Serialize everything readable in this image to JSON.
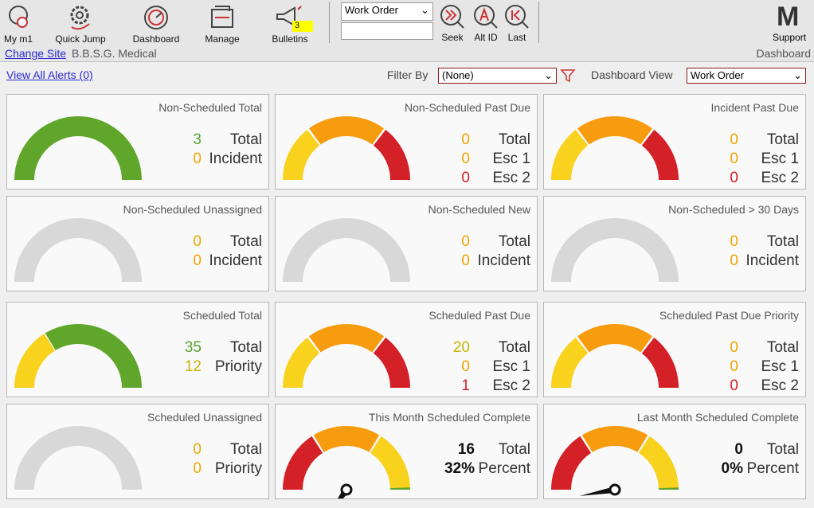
{
  "toolbar": {
    "buttons": [
      "My m1",
      "Quick Jump",
      "Dashboard",
      "Manage",
      "Bulletins"
    ],
    "bulletin_count": "3",
    "search_type": "Work Order",
    "search_buttons": [
      "Seek",
      "Alt ID",
      "Last"
    ],
    "logo": "M",
    "support": "Support"
  },
  "site": {
    "change_site": "Change Site",
    "name": "B.B.S.G. Medical",
    "page": "Dashboard"
  },
  "filters": {
    "alerts": "View All Alerts (0)",
    "filter_label": "Filter By",
    "filter_value": "(None)",
    "view_label": "Dashboard View",
    "view_value": "Work Order"
  },
  "cards": [
    {
      "title": "Non-Scheduled Total",
      "gauge": "green",
      "rows": [
        {
          "value": "3",
          "label": "Total",
          "color": "#5aa02c"
        },
        {
          "value": "0",
          "label": "Incident",
          "color": "#f0a500"
        }
      ]
    },
    {
      "title": "Non-Scheduled Past Due",
      "gauge": "alert",
      "rows": [
        {
          "value": "0",
          "label": "Total",
          "color": "#f0a500"
        },
        {
          "value": "0",
          "label": "Esc 1",
          "color": "#f0a500"
        },
        {
          "value": "0",
          "label": "Esc 2",
          "color": "#d42027"
        }
      ]
    },
    {
      "title": "Incident Past Due",
      "gauge": "alert",
      "rows": [
        {
          "value": "0",
          "label": "Total",
          "color": "#f0a500"
        },
        {
          "value": "0",
          "label": "Esc 1",
          "color": "#f0a500"
        },
        {
          "value": "0",
          "label": "Esc 2",
          "color": "#d42027"
        }
      ]
    },
    {
      "title": "Non-Scheduled Unassigned",
      "gauge": "grey",
      "rows": [
        {
          "value": "0",
          "label": "Total",
          "color": "#f0a500"
        },
        {
          "value": "0",
          "label": "Incident",
          "color": "#f0a500"
        }
      ]
    },
    {
      "title": "Non-Scheduled New",
      "gauge": "grey",
      "rows": [
        {
          "value": "0",
          "label": "Total",
          "color": "#f0a500"
        },
        {
          "value": "0",
          "label": "Incident",
          "color": "#f0a500"
        }
      ]
    },
    {
      "title": "Non-Scheduled > 30 Days",
      "gauge": "grey",
      "rows": [
        {
          "value": "0",
          "label": "Total",
          "color": "#f0a500"
        },
        {
          "value": "0",
          "label": "Incident",
          "color": "#f0a500"
        }
      ]
    },
    {
      "title": "Scheduled Total",
      "gauge": "priority",
      "rows": [
        {
          "value": "35",
          "label": "Total",
          "color": "#5aa02c"
        },
        {
          "value": "12",
          "label": "Priority",
          "color": "#c9b400"
        }
      ]
    },
    {
      "title": "Scheduled Past Due",
      "gauge": "alert",
      "rows": [
        {
          "value": "20",
          "label": "Total",
          "color": "#c9b400"
        },
        {
          "value": "0",
          "label": "Esc 1",
          "color": "#f0a500"
        },
        {
          "value": "1",
          "label": "Esc 2",
          "color": "#d42027"
        }
      ]
    },
    {
      "title": "Scheduled Past Due Priority",
      "gauge": "alert",
      "rows": [
        {
          "value": "0",
          "label": "Total",
          "color": "#f0a500"
        },
        {
          "value": "0",
          "label": "Esc 1",
          "color": "#f0a500"
        },
        {
          "value": "0",
          "label": "Esc 2",
          "color": "#d42027"
        }
      ]
    },
    {
      "title": "Scheduled Unassigned",
      "gauge": "grey",
      "rows": [
        {
          "value": "0",
          "label": "Total",
          "color": "#f0a500"
        },
        {
          "value": "0",
          "label": "Priority",
          "color": "#f0a500"
        }
      ]
    },
    {
      "title": "This Month Scheduled Complete",
      "gauge": "complete",
      "rows": [
        {
          "value": "16",
          "label": "Total",
          "color": "#111111"
        },
        {
          "value": "32%",
          "label": "Percent",
          "color": "#111111"
        }
      ]
    },
    {
      "title": "Last Month Scheduled Complete",
      "gauge": "complete",
      "rows": [
        {
          "value": "0",
          "label": "Total",
          "color": "#111111"
        },
        {
          "value": "0%",
          "label": "Percent",
          "color": "#111111"
        }
      ]
    }
  ]
}
